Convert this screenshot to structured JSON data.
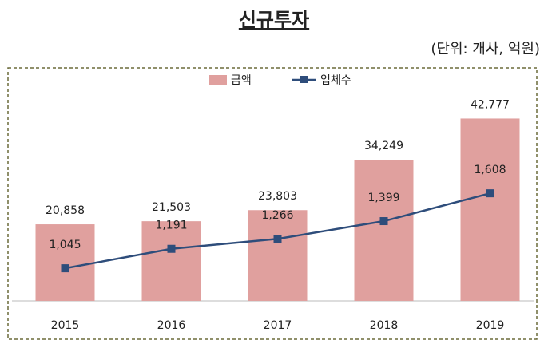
{
  "chart_data": {
    "type": "bar-line",
    "title": "신규투자",
    "subtitle": "(단위: 개사, 억원)",
    "categories": [
      "2015",
      "2016",
      "2017",
      "2018",
      "2019"
    ],
    "series": [
      {
        "name": "금액",
        "type": "bar",
        "color": "#e0a09e",
        "values": [
          20858,
          21503,
          23803,
          34249,
          42777
        ],
        "value_labels": [
          "20,858",
          "21,503",
          "23,803",
          "34,249",
          "42,777"
        ]
      },
      {
        "name": "업체수",
        "type": "line",
        "axis": "y2",
        "color": "#2e4d7b",
        "values": [
          1045,
          1191,
          1266,
          1399,
          1608
        ],
        "value_labels": [
          "1,045",
          "1,191",
          "1,266",
          "1,399",
          "1,608"
        ]
      }
    ],
    "ylim": [
      5000,
      45000
    ],
    "y2lim": [
      800,
      2250
    ],
    "legend": "top"
  }
}
